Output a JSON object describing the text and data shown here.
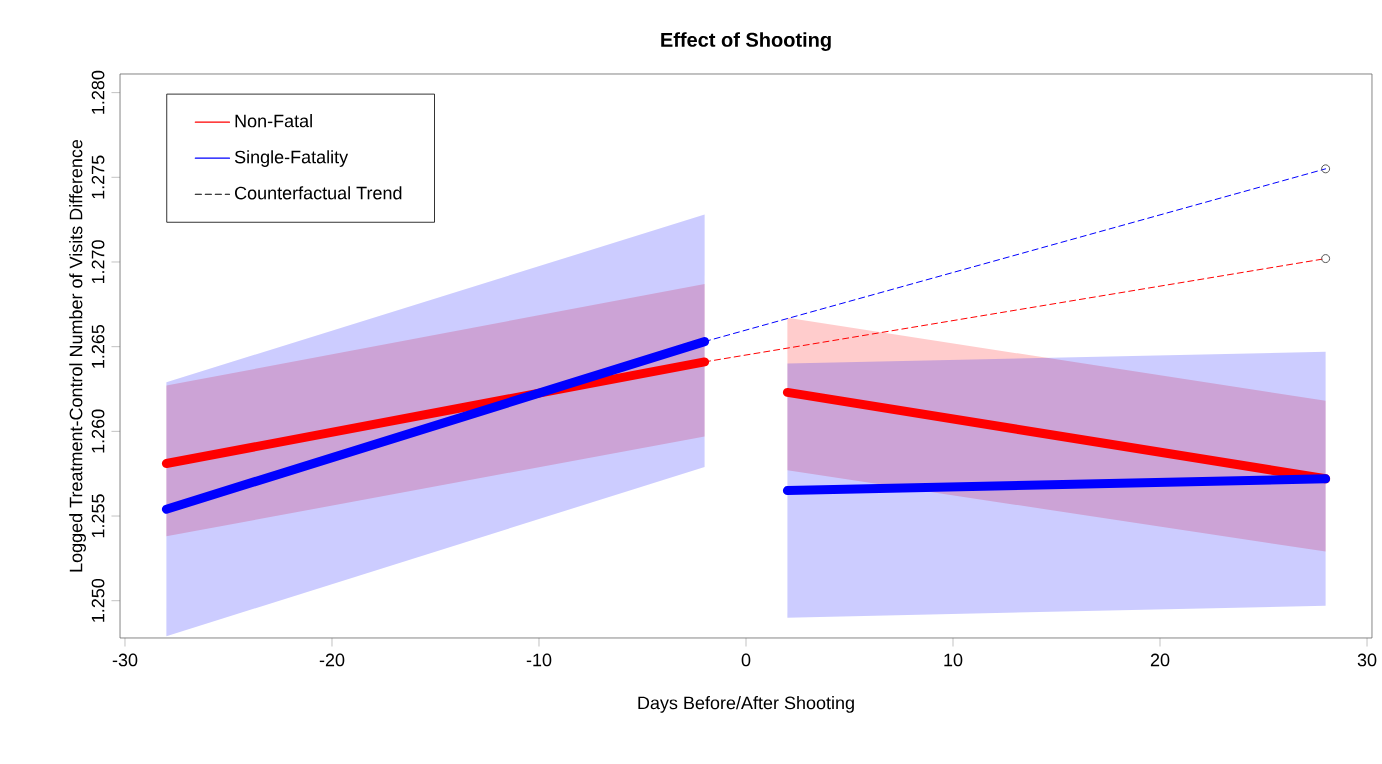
{
  "chart_data": {
    "type": "line",
    "title": "Effect of Shooting",
    "xlabel": "Days Before/After Shooting",
    "ylabel": "Logged Treatment-Control Number of Visits Difference",
    "xlim": [
      -30.24,
      30.24
    ],
    "ylim": [
      1.2478,
      1.2811
    ],
    "xticks": [
      -30,
      -20,
      -10,
      0,
      10,
      20,
      30
    ],
    "yticks": [
      {
        "value": 1.25,
        "label": "1.250"
      },
      {
        "value": 1.255,
        "label": "1.255"
      },
      {
        "value": 1.26,
        "label": "1.260"
      },
      {
        "value": 1.265,
        "label": "1.265"
      },
      {
        "value": 1.27,
        "label": "1.270"
      },
      {
        "value": 1.275,
        "label": "1.275"
      },
      {
        "value": 1.28,
        "label": "1.280"
      }
    ],
    "legend": "top left",
    "series": [
      {
        "name": "Non-Fatal",
        "color": "#ff0000",
        "line_style": "solid",
        "x": [
          -28,
          -2
        ],
        "values": [
          1.2581,
          1.2641
        ],
        "lower": [
          1.2538,
          1.2597
        ],
        "upper": [
          1.2627,
          1.2687
        ]
      },
      {
        "name": "Single-Fatality",
        "color": "#0000ff",
        "line_style": "solid",
        "x": [
          -28,
          -2
        ],
        "values": [
          1.2554,
          1.2653
        ],
        "lower": [
          1.2479,
          1.2579
        ],
        "upper": [
          1.2629,
          1.2728
        ]
      },
      {
        "name": "Counterfactual Trend",
        "color": "#000000",
        "line_style": "dashed"
      },
      {
        "color": "#ff0000",
        "line_style": "solid",
        "x": [
          2,
          28
        ],
        "values": [
          1.2623,
          1.2572
        ],
        "lower": [
          1.2577,
          1.2529
        ],
        "upper": [
          1.2667,
          1.2618
        ]
      },
      {
        "color": "#0000ff",
        "line_style": "solid",
        "x": [
          2,
          28
        ],
        "values": [
          1.2565,
          1.2572
        ],
        "lower": [
          1.249,
          1.2497
        ],
        "upper": [
          1.264,
          1.2647
        ]
      },
      {
        "color": "#ff0000",
        "line_style": "dashed",
        "x": [
          -2,
          28
        ],
        "values": [
          1.2641,
          1.2702
        ]
      },
      {
        "color": "#0000ff",
        "line_style": "dashed",
        "x": [
          -2,
          28
        ],
        "values": [
          1.2653,
          1.2755
        ]
      },
      {
        "type": "scatter",
        "color": "#555555",
        "marker": "circle",
        "x": [
          28,
          28
        ],
        "values": [
          1.2755,
          1.2702
        ]
      }
    ]
  }
}
